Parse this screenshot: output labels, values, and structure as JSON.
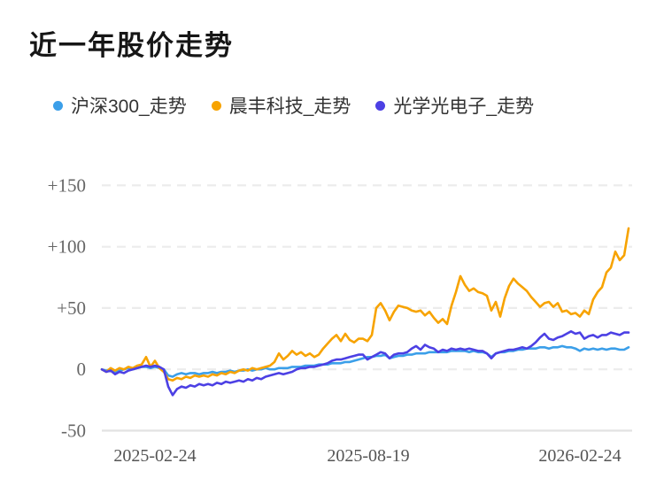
{
  "title": "近一年股价走势",
  "legend": {
    "items": [
      {
        "key": "hs300",
        "label": "沪深300_走势",
        "color": "#3B9FE9"
      },
      {
        "key": "chenfeng",
        "label": "晨丰科技_走势",
        "color": "#F7A300"
      },
      {
        "key": "optics",
        "label": "光学光电子_走势",
        "color": "#4C40E4"
      }
    ]
  },
  "chart_data": {
    "type": "line",
    "title": "近一年股价走势",
    "xlabel": "",
    "ylabel": "",
    "ylim": [
      -50,
      150
    ],
    "grid": "horizontal-dashed",
    "legend_position": "top-left",
    "grid_color": "#ECECEC",
    "axis_line_color": "#E3E3E3",
    "x_tick_labels": [
      "2025-02-24",
      "2025-08-19",
      "2026-02-24"
    ],
    "y_ticks": [
      {
        "label": "+150",
        "value": 150
      },
      {
        "label": "+100",
        "value": 100
      },
      {
        "label": "+50",
        "value": 50
      },
      {
        "label": "0",
        "value": 0
      },
      {
        "label": "-50",
        "value": -50
      }
    ],
    "series": [
      {
        "key": "hs300",
        "name": "沪深300_走势",
        "color": "#3B9FE9",
        "values": [
          0,
          -1,
          0,
          -2,
          -1,
          0,
          1,
          0,
          1,
          2,
          2,
          1,
          2,
          1,
          0,
          -5,
          -6,
          -4,
          -3,
          -4,
          -3,
          -3,
          -4,
          -3,
          -3,
          -2,
          -3,
          -2,
          -2,
          -1,
          -2,
          -1,
          -1,
          0,
          -1,
          0,
          0,
          1,
          0,
          0,
          1,
          1,
          1,
          2,
          2,
          2,
          3,
          3,
          3,
          4,
          4,
          4,
          5,
          5,
          5,
          6,
          6,
          7,
          8,
          9,
          10,
          10,
          11,
          11,
          12,
          9,
          10,
          11,
          11,
          12,
          12,
          13,
          13,
          13,
          14,
          14,
          14,
          14,
          14,
          15,
          15,
          15,
          15,
          14,
          15,
          14,
          14,
          13,
          10,
          13,
          14,
          14,
          15,
          15,
          16,
          16,
          17,
          17,
          17,
          18,
          18,
          17,
          18,
          18,
          19,
          18,
          18,
          17,
          15,
          17,
          16,
          17,
          16,
          17,
          16,
          17,
          17,
          16,
          16,
          18
        ]
      },
      {
        "key": "chenfeng",
        "name": "晨丰科技_走势",
        "color": "#F7A300",
        "values": [
          0,
          -2,
          1,
          -1,
          1,
          0,
          2,
          1,
          3,
          4,
          10,
          2,
          7,
          1,
          -2,
          -8,
          -9,
          -7,
          -8,
          -6,
          -7,
          -5,
          -6,
          -5,
          -6,
          -4,
          -5,
          -3,
          -4,
          -2,
          -3,
          -1,
          0,
          -1,
          1,
          0,
          1,
          2,
          3,
          6,
          13,
          8,
          11,
          15,
          12,
          14,
          11,
          13,
          10,
          12,
          17,
          21,
          25,
          28,
          23,
          29,
          24,
          22,
          25,
          25,
          23,
          28,
          50,
          54,
          48,
          40,
          47,
          52,
          51,
          50,
          48,
          47,
          48,
          44,
          47,
          42,
          38,
          41,
          37,
          52,
          63,
          76,
          69,
          64,
          66,
          63,
          62,
          60,
          48,
          55,
          43,
          58,
          68,
          74,
          70,
          67,
          64,
          59,
          55,
          51,
          54,
          55,
          51,
          54,
          47,
          48,
          45,
          46,
          43,
          48,
          45,
          57,
          63,
          67,
          79,
          83,
          96,
          89,
          93,
          115
        ]
      },
      {
        "key": "optics",
        "name": "光学光电子_走势",
        "color": "#4C40E4",
        "values": [
          0,
          -2,
          -1,
          -4,
          -2,
          -3,
          -1,
          0,
          1,
          2,
          3,
          2,
          3,
          2,
          0,
          -14,
          -21,
          -16,
          -14,
          -15,
          -13,
          -14,
          -12,
          -13,
          -12,
          -13,
          -11,
          -12,
          -10,
          -11,
          -10,
          -9,
          -10,
          -8,
          -9,
          -7,
          -8,
          -6,
          -5,
          -4,
          -3,
          -4,
          -3,
          -2,
          0,
          1,
          1,
          2,
          2,
          3,
          4,
          5,
          7,
          8,
          8,
          9,
          10,
          11,
          12,
          12,
          8,
          10,
          12,
          14,
          13,
          9,
          12,
          13,
          13,
          14,
          17,
          19,
          16,
          20,
          18,
          17,
          14,
          16,
          15,
          17,
          16,
          17,
          16,
          17,
          16,
          15,
          15,
          13,
          9,
          13,
          14,
          15,
          16,
          16,
          17,
          18,
          17,
          19,
          22,
          26,
          29,
          25,
          24,
          26,
          27,
          29,
          31,
          29,
          30,
          25,
          27,
          28,
          26,
          28,
          28,
          30,
          29,
          28,
          30,
          30
        ]
      }
    ]
  }
}
